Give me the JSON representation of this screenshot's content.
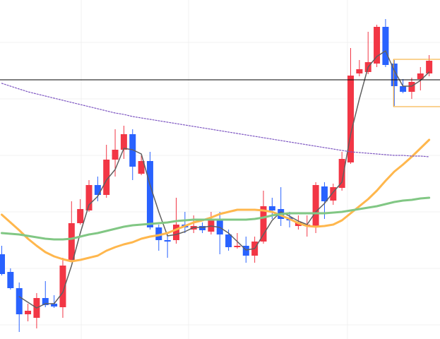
{
  "chart_data": {
    "type": "candlestick",
    "open": [
      120,
      95,
      72,
      35,
      30,
      58,
      50,
      45,
      112,
      164,
      182,
      218,
      204,
      254,
      268,
      290,
      234,
      252,
      158,
      140,
      140,
      162,
      155,
      160,
      152,
      168,
      148,
      130,
      132,
      118,
      138,
      188,
      184,
      172,
      160,
      160,
      160,
      216,
      196,
      214,
      250,
      376,
      378,
      390,
      442,
      390,
      358,
      350,
      368,
      376
    ],
    "high": [
      132,
      100,
      80,
      50,
      65,
      82,
      62,
      115,
      195,
      198,
      225,
      230,
      275,
      297,
      302,
      297,
      260,
      265,
      162,
      150,
      200,
      180,
      175,
      165,
      180,
      180,
      155,
      150,
      145,
      145,
      210,
      200,
      215,
      180,
      175,
      175,
      222,
      222,
      220,
      265,
      412,
      395,
      435,
      445,
      453,
      395,
      368,
      370,
      385,
      402
    ],
    "low": [
      90,
      70,
      10,
      25,
      15,
      45,
      44,
      30,
      110,
      162,
      180,
      195,
      200,
      230,
      255,
      225,
      232,
      155,
      125,
      115,
      135,
      150,
      150,
      150,
      148,
      120,
      125,
      128,
      108,
      108,
      135,
      170,
      160,
      158,
      155,
      145,
      150,
      170,
      190,
      210,
      248,
      372,
      375,
      385,
      385,
      330,
      348,
      340,
      352,
      372
    ],
    "close": [
      92,
      72,
      35,
      40,
      58,
      48,
      46,
      104,
      164,
      184,
      218,
      204,
      254,
      268,
      290,
      244,
      252,
      158,
      140,
      138,
      162,
      158,
      160,
      154,
      168,
      148,
      130,
      132,
      118,
      138,
      188,
      182,
      170,
      168,
      165,
      162,
      218,
      195,
      215,
      255,
      373,
      382,
      392,
      442,
      388,
      358,
      350,
      364,
      376,
      394
    ],
    "up_color": "#f23645",
    "down_color": "#2962ff",
    "overlays": [
      {
        "color": "#606060",
        "style": "solid",
        "width": 1.5,
        "values": [
          null,
          null,
          60,
          52,
          44,
          50,
          50,
          66,
          104,
          150,
          190,
          202,
          225,
          240,
          270,
          268,
          262,
          218,
          180,
          146,
          148,
          152,
          158,
          158,
          160,
          158,
          150,
          138,
          126,
          128,
          148,
          168,
          180,
          174,
          167,
          162,
          180,
          192,
          208,
          222,
          290,
          340,
          385,
          400,
          408,
          380,
          358,
          358,
          366,
          378
        ]
      },
      {
        "color": "#ffb74d",
        "style": "solid",
        "width": 3,
        "values": [
          176,
          165,
          154,
          142,
          132,
          123,
          117,
          113,
          110,
          112,
          115,
          118,
          125,
          130,
          134,
          137,
          142,
          145,
          147,
          150,
          155,
          160,
          165,
          168,
          172,
          177,
          180,
          183,
          183,
          183,
          182,
          180,
          175,
          170,
          164,
          160,
          159,
          160,
          162,
          168,
          178,
          188,
          198,
          210,
          224,
          237,
          247,
          258,
          270,
          282
        ]
      },
      {
        "color": "#81c784",
        "style": "solid",
        "width": 3,
        "values": [
          150,
          149,
          148,
          146,
          144,
          142,
          141,
          141,
          142,
          145,
          148,
          150,
          153,
          156,
          159,
          161,
          162,
          163,
          164,
          165,
          167,
          168,
          169,
          169,
          169,
          169,
          169,
          169,
          169,
          170,
          172,
          175,
          177,
          178,
          178,
          178,
          178,
          178,
          179,
          180,
          182,
          184,
          186,
          188,
          191,
          194,
          196,
          197,
          199,
          200
        ]
      },
      {
        "color": "#7e57c2",
        "style": "dotted",
        "width": 1.2,
        "values": [
          362,
          358,
          354,
          350,
          347,
          344,
          341,
          338,
          335,
          332,
          329,
          326,
          323,
          320,
          318,
          315,
          313,
          311,
          309,
          307,
          305,
          303,
          301,
          299,
          297,
          295,
          293,
          291,
          289,
          287,
          285,
          283,
          281,
          279,
          277,
          275,
          273,
          271,
          269,
          267,
          265,
          264,
          263,
          262,
          261,
          260,
          260,
          259,
          259,
          258
        ]
      }
    ],
    "hline": 367,
    "hline_color": "#000000",
    "box": [
      329,
      396
    ],
    "box_color": "#f5a623",
    "ylim": [
      0,
      480
    ],
    "yticks": [
      20,
      100,
      180,
      260,
      340,
      420
    ],
    "grid": true
  }
}
